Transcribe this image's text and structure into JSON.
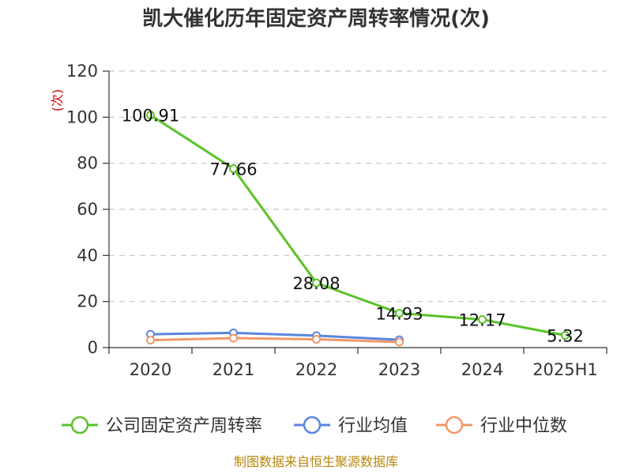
{
  "chart_data": {
    "type": "line",
    "title": "凯大催化历年固定资产周转率情况(次)",
    "ylabel": "(次)",
    "categories": [
      "2020",
      "2021",
      "2022",
      "2023",
      "2024",
      "2025H1"
    ],
    "ylim": [
      0,
      120
    ],
    "yticks": [
      0,
      20,
      40,
      60,
      80,
      100,
      120
    ],
    "grid": true,
    "legend_position": "bottom",
    "series": [
      {
        "name": "公司固定资产周转率",
        "color": "#5cc22a",
        "values": [
          100.91,
          77.66,
          28.08,
          14.93,
          12.17,
          5.32
        ],
        "labels": [
          "100.91",
          "77.66",
          "28.08",
          "14.93",
          "12.17",
          "5.32"
        ]
      },
      {
        "name": "行业均值",
        "color": "#5b86e0",
        "values": [
          5.8,
          6.4,
          5.2,
          3.4,
          null,
          null
        ]
      },
      {
        "name": "行业中位数",
        "color": "#f09868",
        "values": [
          3.2,
          4.1,
          3.6,
          2.4,
          null,
          null
        ]
      }
    ],
    "source": "制图数据来自恒生聚源数据库"
  }
}
